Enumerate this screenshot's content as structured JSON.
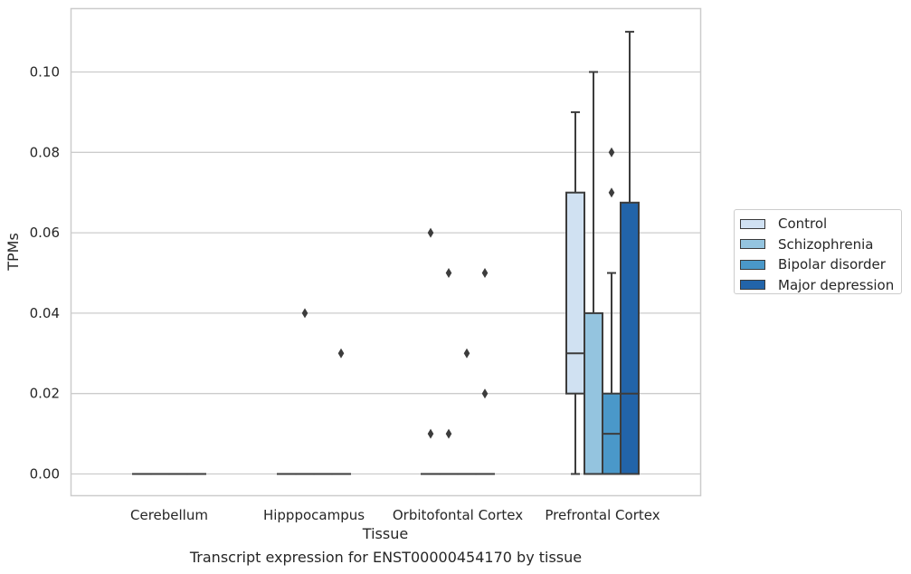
{
  "caption": "Transcript expression for ENST00000454170 by tissue",
  "chart_data": {
    "type": "box",
    "xlabel": "Tissue",
    "ylabel": "TPMs",
    "ylim": [
      -0.0055,
      0.116
    ],
    "yticks": [
      0.0,
      0.02,
      0.04,
      0.06,
      0.08,
      0.1
    ],
    "ytick_labels": [
      "0.00",
      "0.02",
      "0.04",
      "0.06",
      "0.08",
      "0.10"
    ],
    "grid": true,
    "legend_position": "right",
    "categories": [
      "Cerebellum",
      "Hipppocampus",
      "Orbitofontal Cortex",
      "Prefrontal Cortex"
    ],
    "series": [
      {
        "name": "Control",
        "color": "#d0e1f2",
        "boxes": [
          {
            "q1": 0,
            "median": 0,
            "q3": 0,
            "whislo": 0,
            "whishi": 0,
            "fliers": []
          },
          {
            "q1": 0,
            "median": 0,
            "q3": 0,
            "whislo": 0,
            "whishi": 0,
            "fliers": []
          },
          {
            "q1": 0,
            "median": 0,
            "q3": 0,
            "whislo": 0,
            "whishi": 0,
            "fliers": [
              0.06,
              0.01
            ]
          },
          {
            "q1": 0.02,
            "median": 0.03,
            "q3": 0.07,
            "whislo": 0.0,
            "whishi": 0.09,
            "fliers": []
          }
        ]
      },
      {
        "name": "Schizophrenia",
        "color": "#94c4df",
        "boxes": [
          {
            "q1": 0,
            "median": 0,
            "q3": 0,
            "whislo": 0,
            "whishi": 0,
            "fliers": []
          },
          {
            "q1": 0,
            "median": 0,
            "q3": 0,
            "whislo": 0,
            "whishi": 0,
            "fliers": [
              0.04
            ]
          },
          {
            "q1": 0,
            "median": 0,
            "q3": 0,
            "whislo": 0,
            "whishi": 0,
            "fliers": [
              0.05,
              0.01
            ]
          },
          {
            "q1": 0.0,
            "median": 0.0,
            "q3": 0.04,
            "whislo": 0.0,
            "whishi": 0.1,
            "fliers": []
          }
        ]
      },
      {
        "name": "Bipolar disorder",
        "color": "#4a98c9",
        "boxes": [
          {
            "q1": 0,
            "median": 0,
            "q3": 0,
            "whislo": 0,
            "whishi": 0,
            "fliers": []
          },
          {
            "q1": 0,
            "median": 0,
            "q3": 0,
            "whislo": 0,
            "whishi": 0,
            "fliers": []
          },
          {
            "q1": 0,
            "median": 0,
            "q3": 0,
            "whislo": 0,
            "whishi": 0,
            "fliers": [
              0.03
            ]
          },
          {
            "q1": 0.0,
            "median": 0.01,
            "q3": 0.02,
            "whislo": 0.0,
            "whishi": 0.05,
            "fliers": [
              0.08,
              0.07
            ]
          }
        ]
      },
      {
        "name": "Major depression",
        "color": "#2264a9",
        "boxes": [
          {
            "q1": 0,
            "median": 0,
            "q3": 0,
            "whislo": 0,
            "whishi": 0,
            "fliers": []
          },
          {
            "q1": 0,
            "median": 0,
            "q3": 0,
            "whislo": 0,
            "whishi": 0,
            "fliers": [
              0.03
            ]
          },
          {
            "q1": 0,
            "median": 0,
            "q3": 0,
            "whislo": 0,
            "whishi": 0,
            "fliers": [
              0.05,
              0.02
            ]
          },
          {
            "q1": 0.0,
            "median": 0.02,
            "q3": 0.0675,
            "whislo": 0.0,
            "whishi": 0.11,
            "fliers": []
          }
        ]
      }
    ]
  }
}
